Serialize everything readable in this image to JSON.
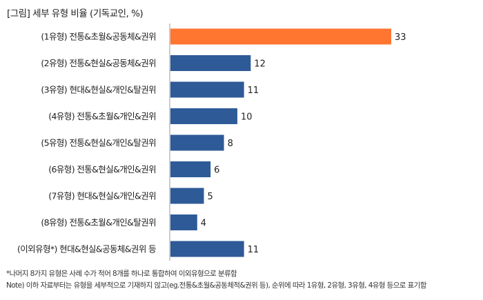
{
  "title": "[그림] 세부 유형 비율 (기독교인, %)",
  "chart_data": {
    "type": "bar",
    "orientation": "horizontal",
    "title": "[그림] 세부 유형 비율 (기독교인, %)",
    "categories": [
      "(1유형) 전통&초월&공동체&권위",
      "(2유형) 전통&현실&공동체&권위",
      "(3유형) 현대&현실&개인&탈권위",
      "(4유형) 전통&초월&개인&권위",
      "(5유형) 전통&현실&개인&탈권위",
      "(6유형) 전통&현실&개인&권위",
      "(7유형) 현대&현실&개인&권위",
      "(8유형) 전통&초월&개인&탈권위",
      "(이외유형*) 현대&현실&공동체&권위 등"
    ],
    "values": [
      33,
      12,
      11,
      10,
      8,
      6,
      5,
      4,
      11
    ],
    "highlight_index": 0,
    "colors": {
      "highlight": "#FF7631",
      "default": "#2E5A98",
      "axis": "#BBBBBB"
    },
    "xlim": [
      0,
      33
    ],
    "grid": false
  },
  "notes": [
    "*나머지 8가지 유형은 사례 수가 적어 8개를 하나로 통합하여 이외유형으로 분류함",
    "Note) 이하 자료부터는 유형을 세부적으로 기재하지 않고(eg.전통&초월&공동체적&권위 등), 순위에 따라 1유형, 2유형, 3유형, 4유형 등으로 표기함"
  ]
}
